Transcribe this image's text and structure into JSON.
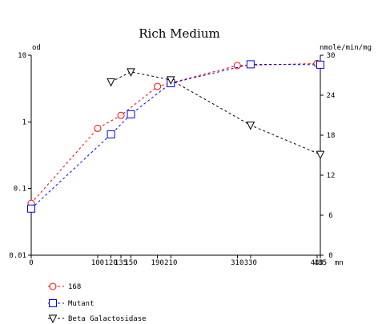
{
  "chart_data": {
    "type": "line",
    "title": "Rich Medium",
    "xunit": "mn",
    "xlim": [
      0,
      435
    ],
    "y_left": {
      "label": "od",
      "scale": "log",
      "range": [
        0.01,
        10
      ],
      "ticks": [
        10,
        1,
        0.1,
        0.01
      ],
      "tick_labels": [
        "10",
        "1",
        "0.1",
        "0.01"
      ]
    },
    "y_right": {
      "label": "nmole/min/mg",
      "scale": "linear",
      "range": [
        0,
        30
      ],
      "ticks": [
        30,
        24,
        18,
        12,
        6,
        0
      ],
      "tick_labels": [
        "30",
        "24",
        "18",
        "12",
        "6",
        "0"
      ]
    },
    "x_ticks": [
      0,
      100,
      120,
      135,
      150,
      190,
      210,
      310,
      330,
      430,
      435
    ],
    "x_tick_labels": [
      "0",
      "100",
      "120",
      "135",
      "150",
      "190",
      "210",
      "310",
      "330",
      "430",
      "435"
    ],
    "series": [
      {
        "name": "168",
        "axis": "left",
        "marker": "circle",
        "color": "#ff0000",
        "x": [
          0,
          100,
          135,
          190,
          310,
          430
        ],
        "y": [
          0.06,
          0.8,
          1.25,
          3.4,
          7.0,
          7.5
        ]
      },
      {
        "name": "Mutant",
        "axis": "left",
        "marker": "square",
        "color": "#0000ff",
        "x": [
          0,
          120,
          150,
          210,
          330,
          435
        ],
        "y": [
          0.05,
          0.65,
          1.3,
          3.8,
          7.3,
          7.2
        ]
      },
      {
        "name": "Beta Galactosidase",
        "axis": "right",
        "marker": "triangle-down",
        "color": "#000000",
        "x": [
          120,
          150,
          210,
          330,
          435
        ],
        "y": [
          26,
          27.5,
          26.3,
          19.5,
          15.1
        ]
      }
    ],
    "legend_position": "bottom-left",
    "grid": false
  }
}
